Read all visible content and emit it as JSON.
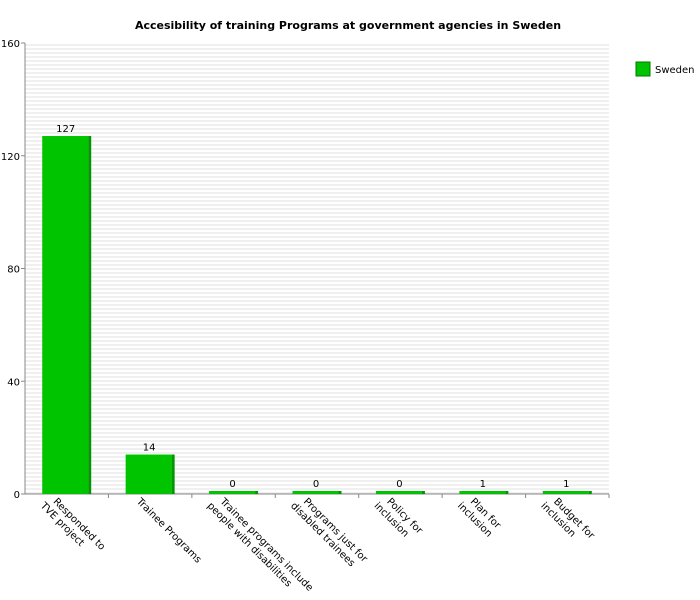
{
  "chart_data": {
    "type": "bar",
    "title": "Accesibility of training Programs at government agencies in Sweden",
    "xlabel": "",
    "ylabel": "",
    "ylim": [
      0,
      160
    ],
    "yticks": [
      0,
      40,
      80,
      120,
      160
    ],
    "categories": [
      [
        "Responded to",
        "TVE project"
      ],
      [
        "Trainee Programs"
      ],
      [
        "Trainee programs include",
        "people with disabilities"
      ],
      [
        "Programs just for",
        "disabled trainees"
      ],
      [
        "Policy for",
        "inclusion"
      ],
      [
        "Plan for",
        "inclusion"
      ],
      [
        "Budget for",
        "inclusion"
      ]
    ],
    "series": [
      {
        "name": "Sweden",
        "color": "#00c400",
        "values": [
          127,
          14,
          0,
          0,
          0,
          1,
          1
        ]
      }
    ],
    "legend": {
      "position": "top-right",
      "entries": [
        "Sweden"
      ]
    },
    "grid": true,
    "colors": {
      "bar": "#00c400",
      "bar_side": "#009600",
      "grid": "#e2e2e2",
      "axis": "#888888"
    }
  }
}
